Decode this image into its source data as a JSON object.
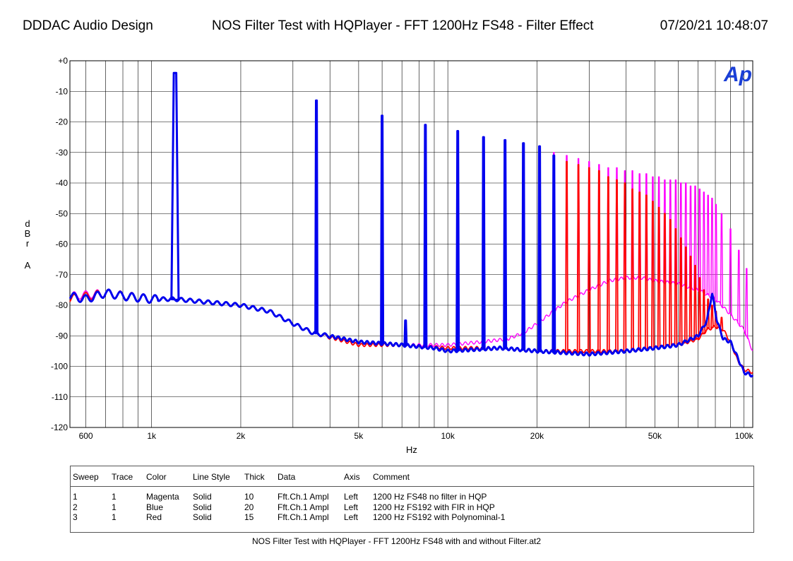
{
  "header": {
    "left": "DDDAC Audio Design",
    "center": "NOS Filter Test with HQPlayer - FFT 1200Hz FS48 - Filter Effect",
    "right": "07/20/21 10:48:07"
  },
  "logo_text": "Ap",
  "chart_data": {
    "type": "line",
    "xscale": "log",
    "xlim": [
      530,
      107000
    ],
    "ylim": [
      -120,
      0
    ],
    "grid": true,
    "xlabel": "Hz",
    "ylabel": "dBr A",
    "y_ticks": [
      "+0",
      "-10",
      "-20",
      "-30",
      "-40",
      "-50",
      "-60",
      "-70",
      "-80",
      "-90",
      "-100",
      "-110",
      "-120"
    ],
    "x_ticks": [
      {
        "value": 600,
        "label": "600"
      },
      {
        "value": 1000,
        "label": "1k"
      },
      {
        "value": 2000,
        "label": "2k"
      },
      {
        "value": 5000,
        "label": "5k"
      },
      {
        "value": 10000,
        "label": "10k"
      },
      {
        "value": 20000,
        "label": "20k"
      },
      {
        "value": 50000,
        "label": "50k"
      },
      {
        "value": 100000,
        "label": "100k"
      }
    ],
    "series": [
      {
        "name": "Magenta",
        "color": "#ff00ff",
        "floor": [
          [
            530,
            -77
          ],
          [
            700,
            -76
          ],
          [
            1000,
            -78
          ],
          [
            1200,
            -78
          ],
          [
            2000,
            -80
          ],
          [
            2500,
            -82
          ],
          [
            3000,
            -86
          ],
          [
            3500,
            -89
          ],
          [
            5000,
            -92
          ],
          [
            7000,
            -93
          ],
          [
            10000,
            -93
          ],
          [
            13000,
            -92
          ],
          [
            16000,
            -91
          ],
          [
            18000,
            -89
          ],
          [
            20000,
            -86
          ],
          [
            22000,
            -83
          ],
          [
            25000,
            -79
          ],
          [
            30000,
            -75
          ],
          [
            35000,
            -72
          ],
          [
            40000,
            -71
          ],
          [
            45000,
            -71
          ],
          [
            50000,
            -72
          ],
          [
            60000,
            -73
          ],
          [
            70000,
            -75
          ],
          [
            80000,
            -78
          ],
          [
            90000,
            -83
          ],
          [
            100000,
            -88
          ],
          [
            107000,
            -95
          ]
        ],
        "peaks": [
          [
            1200,
            -4
          ],
          [
            3600,
            -13
          ],
          [
            6000,
            -18
          ],
          [
            8400,
            -21
          ],
          [
            10800,
            -23
          ],
          [
            13200,
            -25
          ],
          [
            15600,
            -26
          ],
          [
            18000,
            -27
          ],
          [
            20400,
            -28
          ],
          [
            22800,
            -30
          ],
          [
            25200,
            -31
          ],
          [
            27600,
            -32
          ],
          [
            30000,
            -33
          ],
          [
            32400,
            -34
          ],
          [
            34800,
            -35
          ],
          [
            37200,
            -35
          ],
          [
            39600,
            -36
          ],
          [
            42000,
            -36
          ],
          [
            44400,
            -37
          ],
          [
            46800,
            -37
          ],
          [
            49200,
            -38
          ],
          [
            51600,
            -38
          ],
          [
            54000,
            -39
          ],
          [
            56400,
            -39
          ],
          [
            58800,
            -39
          ],
          [
            61200,
            -40
          ],
          [
            63600,
            -40
          ],
          [
            66000,
            -41
          ],
          [
            68400,
            -41
          ],
          [
            70800,
            -42
          ],
          [
            73200,
            -43
          ],
          [
            75600,
            -44
          ],
          [
            78000,
            -45
          ],
          [
            80400,
            -47
          ],
          [
            84000,
            -50
          ],
          [
            90000,
            -55
          ],
          [
            96000,
            -62
          ],
          [
            102000,
            -68
          ]
        ]
      },
      {
        "name": "Red",
        "color": "#ff0000",
        "floor": [
          [
            530,
            -78
          ],
          [
            700,
            -76
          ],
          [
            1000,
            -78
          ],
          [
            1200,
            -78
          ],
          [
            2000,
            -80
          ],
          [
            2500,
            -82
          ],
          [
            3000,
            -86
          ],
          [
            3500,
            -89
          ],
          [
            5000,
            -93
          ],
          [
            7000,
            -93
          ],
          [
            10000,
            -94
          ],
          [
            15000,
            -94
          ],
          [
            20000,
            -95
          ],
          [
            30000,
            -95
          ],
          [
            40000,
            -95
          ],
          [
            50000,
            -94
          ],
          [
            60000,
            -93
          ],
          [
            70000,
            -91
          ],
          [
            75000,
            -88
          ],
          [
            80000,
            -87
          ],
          [
            85000,
            -88
          ],
          [
            90000,
            -92
          ],
          [
            95000,
            -98
          ],
          [
            100000,
            -101
          ],
          [
            107000,
            -102
          ]
        ],
        "peaks": [
          [
            1200,
            -4
          ],
          [
            3600,
            -13
          ],
          [
            6000,
            -18
          ],
          [
            8400,
            -21
          ],
          [
            10800,
            -23
          ],
          [
            13200,
            -25
          ],
          [
            15600,
            -26
          ],
          [
            18000,
            -27
          ],
          [
            20400,
            -29
          ],
          [
            22800,
            -31
          ],
          [
            25200,
            -33
          ],
          [
            27600,
            -34
          ],
          [
            30000,
            -35
          ],
          [
            32400,
            -36
          ],
          [
            34800,
            -38
          ],
          [
            37200,
            -39
          ],
          [
            39600,
            -40
          ],
          [
            42000,
            -42
          ],
          [
            44400,
            -43
          ],
          [
            46800,
            -44
          ],
          [
            49200,
            -46
          ],
          [
            51600,
            -48
          ],
          [
            54000,
            -50
          ],
          [
            56400,
            -52
          ],
          [
            58800,
            -55
          ],
          [
            61200,
            -58
          ],
          [
            63600,
            -61
          ],
          [
            66000,
            -64
          ],
          [
            68400,
            -67
          ],
          [
            70800,
            -71
          ],
          [
            73200,
            -75
          ],
          [
            75600,
            -78
          ],
          [
            78000,
            -80
          ],
          [
            80400,
            -82
          ],
          [
            84000,
            -84
          ]
        ]
      },
      {
        "name": "Blue",
        "color": "#0000ee",
        "floor": [
          [
            530,
            -77
          ],
          [
            600,
            -78
          ],
          [
            700,
            -76
          ],
          [
            800,
            -77
          ],
          [
            1000,
            -78
          ],
          [
            1200,
            -78
          ],
          [
            2000,
            -80
          ],
          [
            2500,
            -82
          ],
          [
            3000,
            -86
          ],
          [
            3500,
            -89
          ],
          [
            5000,
            -92
          ],
          [
            7000,
            -93
          ],
          [
            9000,
            -94
          ],
          [
            10000,
            -95
          ],
          [
            15000,
            -94
          ],
          [
            20000,
            -95
          ],
          [
            30000,
            -96
          ],
          [
            40000,
            -95
          ],
          [
            50000,
            -94
          ],
          [
            60000,
            -93
          ],
          [
            70000,
            -90
          ],
          [
            75000,
            -85
          ],
          [
            78000,
            -76
          ],
          [
            81000,
            -85
          ],
          [
            85000,
            -91
          ],
          [
            90000,
            -92
          ],
          [
            95000,
            -97
          ],
          [
            100000,
            -102
          ],
          [
            107000,
            -103
          ]
        ],
        "peaks": [
          [
            1200,
            -4
          ],
          [
            3600,
            -13
          ],
          [
            6000,
            -18
          ],
          [
            7200,
            -85
          ],
          [
            8400,
            -21
          ],
          [
            10800,
            -23
          ],
          [
            13200,
            -25
          ],
          [
            15600,
            -26
          ],
          [
            18000,
            -27
          ],
          [
            20400,
            -28
          ],
          [
            22800,
            -31
          ]
        ]
      }
    ]
  },
  "legend": {
    "headers": [
      "Sweep",
      "Trace",
      "Color",
      "Line Style",
      "Thick",
      "Data",
      "Axis",
      "Comment"
    ],
    "rows": [
      [
        "1",
        "1",
        "Magenta",
        "Solid",
        "10",
        "Fft.Ch.1 Ampl",
        "Left",
        "1200 Hz FS48 no filter in HQP"
      ],
      [
        "2",
        "1",
        "Blue",
        "Solid",
        "20",
        "Fft.Ch.1 Ampl",
        "Left",
        "1200 Hz FS192 with FIR in HQP"
      ],
      [
        "3",
        "1",
        "Red",
        "Solid",
        "15",
        "Fft.Ch.1 Ampl",
        "Left",
        "1200 Hz FS192 with Polynominal-1"
      ]
    ]
  },
  "footer": "NOS Filter Test with HQPlayer - FFT 1200Hz FS48 with and without Filter.at2"
}
